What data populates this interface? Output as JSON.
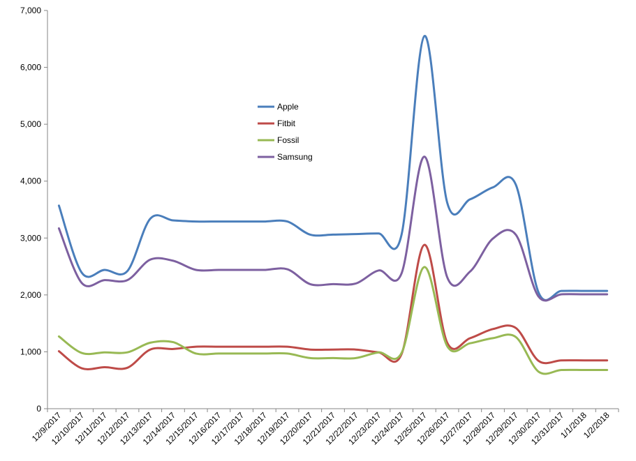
{
  "chart_data": {
    "type": "line",
    "title": "",
    "xlabel": "",
    "ylabel": "",
    "categories": [
      "12/9/2017",
      "12/10/2017",
      "12/11/2017",
      "12/12/2017",
      "12/13/2017",
      "12/14/2017",
      "12/15/2017",
      "12/16/2017",
      "12/17/2017",
      "12/18/2017",
      "12/19/2017",
      "12/20/2017",
      "12/21/2017",
      "12/22/2017",
      "12/23/2017",
      "12/24/2017",
      "12/25/2017",
      "12/26/2017",
      "12/27/2017",
      "12/28/2017",
      "12/29/2017",
      "12/30/2017",
      "12/31/2017",
      "1/1/2018",
      "1/2/2018"
    ],
    "y_ticks": [
      "0",
      "1,000",
      "2,000",
      "3,000",
      "4,000",
      "5,000",
      "6,000",
      "7,000"
    ],
    "ylim": [
      0,
      7000
    ],
    "grid": false,
    "smooth": true,
    "legend_position": "inside-upper-center",
    "series": [
      {
        "name": "Apple",
        "color": "#4a7ebb",
        "values": [
          3570,
          2390,
          2440,
          2420,
          3340,
          3310,
          3290,
          3290,
          3290,
          3290,
          3290,
          3060,
          3060,
          3070,
          3080,
          3060,
          6550,
          3620,
          3680,
          3890,
          3940,
          2040,
          2070,
          2070,
          2070
        ]
      },
      {
        "name": "Fitbit",
        "color": "#be4b48",
        "values": [
          1010,
          710,
          730,
          720,
          1040,
          1050,
          1090,
          1090,
          1090,
          1090,
          1090,
          1040,
          1040,
          1040,
          990,
          960,
          2880,
          1160,
          1240,
          1400,
          1420,
          840,
          850,
          850,
          850
        ]
      },
      {
        "name": "Fossil",
        "color": "#98b954",
        "values": [
          1270,
          980,
          990,
          990,
          1160,
          1170,
          970,
          970,
          970,
          970,
          970,
          890,
          890,
          890,
          990,
          980,
          2490,
          1100,
          1150,
          1240,
          1260,
          650,
          680,
          680,
          680
        ]
      },
      {
        "name": "Samsung",
        "color": "#7d60a0",
        "values": [
          3170,
          2210,
          2260,
          2260,
          2620,
          2600,
          2440,
          2440,
          2440,
          2440,
          2450,
          2190,
          2190,
          2200,
          2430,
          2380,
          4430,
          2310,
          2410,
          2990,
          3060,
          1970,
          2010,
          2010,
          2010
        ]
      }
    ]
  }
}
